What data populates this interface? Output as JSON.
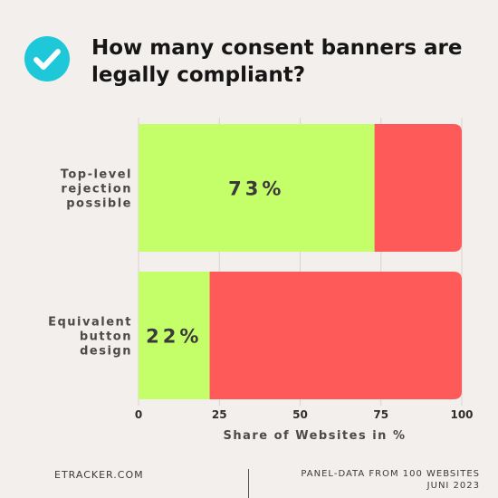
{
  "header": {
    "title": "How many consent banners are legally compliant?",
    "badge_icon": "check-circle-icon",
    "badge_color": "#1ec8d8"
  },
  "chart_data": {
    "type": "bar",
    "orientation": "horizontal",
    "stacked": true,
    "categories": [
      "Top-level rejection possible",
      "Equivalent button design"
    ],
    "series": [
      {
        "color": "#c4ff6a",
        "values": [
          73,
          22
        ]
      },
      {
        "color": "#ff5a5a",
        "values": [
          27,
          78
        ]
      }
    ],
    "data_labels": [
      "73%",
      "22%"
    ],
    "xlabel": "Share of Websites in %",
    "ylabel": "",
    "xlim": [
      0,
      100
    ],
    "xticks": [
      0,
      25,
      50,
      75,
      100
    ],
    "grid": "vertical"
  },
  "footer": {
    "source": "ETRACKER.COM",
    "note_line1": "PANEL-DATA FROM 100 WEBSITES",
    "note_line2": "JUNI 2023"
  }
}
